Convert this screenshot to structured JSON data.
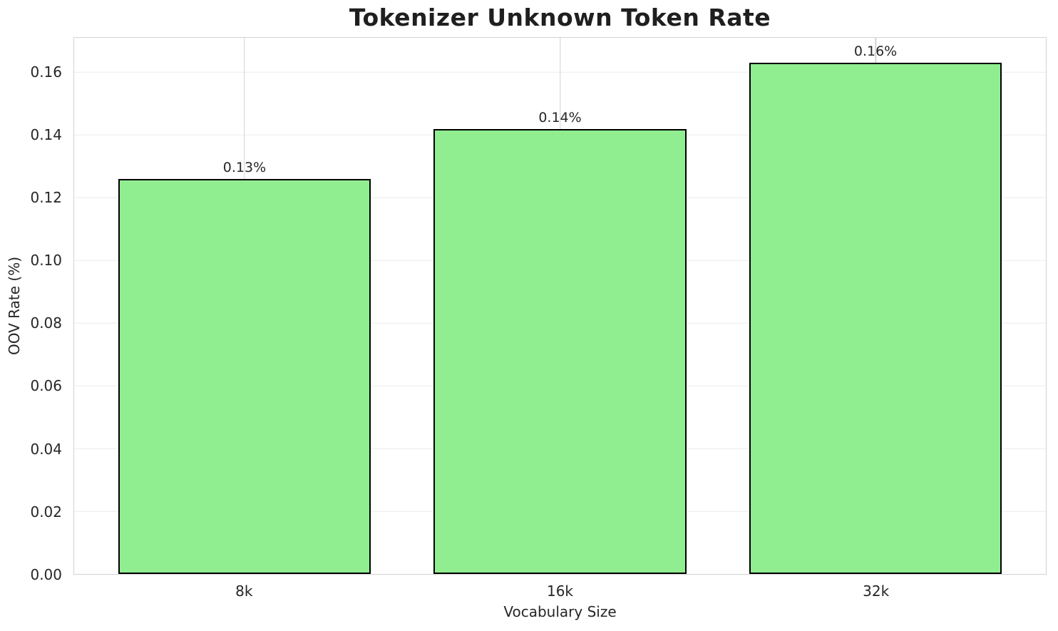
{
  "chart_data": {
    "type": "bar",
    "title": "Tokenizer Unknown Token Rate",
    "xlabel": "Vocabulary Size",
    "ylabel": "OOV Rate (%)",
    "categories": [
      "8k",
      "16k",
      "32k"
    ],
    "values": [
      0.126,
      0.142,
      0.163
    ],
    "bar_labels": [
      "0.13%",
      "0.14%",
      "0.16%"
    ],
    "yticks": [
      0.0,
      0.02,
      0.04,
      0.06,
      0.08,
      0.1,
      0.12,
      0.14,
      0.16
    ],
    "ytick_labels": [
      "0.00",
      "0.02",
      "0.04",
      "0.06",
      "0.08",
      "0.10",
      "0.12",
      "0.14",
      "0.16"
    ],
    "ylim": [
      0,
      0.171
    ],
    "xlim": [
      -0.54,
      2.54
    ],
    "bar_width": 0.8,
    "grid": true,
    "legend": false,
    "colors": {
      "bar_fill": "#90EE90",
      "bar_edge": "#000000",
      "grid_horizontal": "#ececec",
      "grid_vertical": "#d3d3d3",
      "spine": "#d3d3d3",
      "text": "#262626",
      "background": "#ffffff"
    }
  }
}
